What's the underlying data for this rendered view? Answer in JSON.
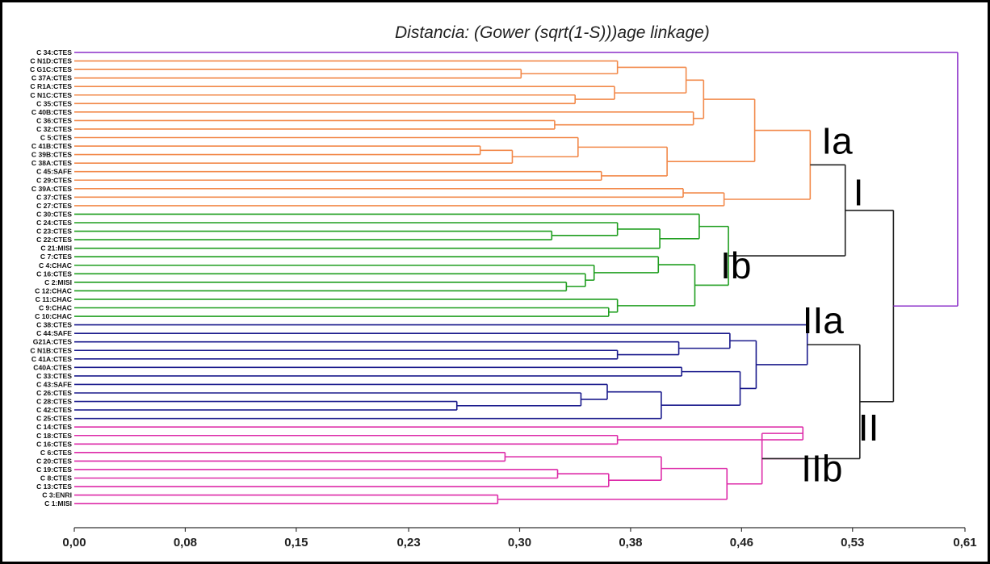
{
  "chart_data": {
    "type": "dendrogram",
    "title_prefix": "Distancia: (Gower (sqrt(1-S))",
    "title_suffix": ")age linkage)",
    "xlim": [
      0,
      0.61
    ],
    "x_ticks": [
      {
        "value": 0.0,
        "label": "0,00"
      },
      {
        "value": 0.076,
        "label": "0,08"
      },
      {
        "value": 0.152,
        "label": "0,15"
      },
      {
        "value": 0.229,
        "label": "0,23"
      },
      {
        "value": 0.305,
        "label": "0,30"
      },
      {
        "value": 0.381,
        "label": "0,38"
      },
      {
        "value": 0.457,
        "label": "0,46"
      },
      {
        "value": 0.533,
        "label": "0,53"
      },
      {
        "value": 0.61,
        "label": "0,61"
      }
    ],
    "colors": {
      "purple": "#8b2fc9",
      "orange": "#f2894a",
      "green": "#1f9e1f",
      "blue": "#1a1a8c",
      "magenta": "#dd2aa8",
      "black": "#222222"
    },
    "leaves": [
      "C 34:CTES",
      "C N1D:CTES",
      "C G1C:CTES",
      "C 37A:CTES",
      "C R1A:CTES",
      "C N1C:CTES",
      "C 35:CTES",
      "C 40B:CTES",
      "C 36:CTES",
      "C 32:CTES",
      "C 5:CTES",
      "C 41B:CTES",
      "C 39B:CTES",
      "C 38A:CTES",
      "C 45:SAFE",
      "C 29:CTES",
      "C 39A:CTES",
      "C 37:CTES",
      "C 27:CTES",
      "C 30:CTES",
      "C 24:CTES",
      "C 23:CTES",
      "C 22:CTES",
      "C 21:MISI",
      "C 7:CTES",
      "C 4:CHAC",
      "C 16:CTES",
      "C 2:MISI",
      "C 12:CHAC",
      "C 11:CHAC",
      "C 9:CHAC",
      "C 10:CHAC",
      "C 38:CTES",
      "C 44:SAFE",
      "G21A:CTES",
      "C N1B:CTES",
      "C 41A:CTES",
      "C40A:CTES",
      "C 33:CTES",
      "C 43:SAFE",
      "C 26:CTES",
      "C 28:CTES",
      "C 42:CTES",
      "C 25:CTES",
      "C 14:CTES",
      "C 18:CTES",
      "C 16:CTES",
      "C 6:CTES",
      "C 20:CTES",
      "C 19:CTES",
      "C 8:CTES",
      "C 13:CTES",
      "C 3:ENRI",
      "C 1:MISI"
    ],
    "merges": [
      {
        "id": "o1",
        "left": 2,
        "right": 3,
        "height": 0.306,
        "color": "orange"
      },
      {
        "id": "o2",
        "left": 1,
        "right": "o1",
        "height": 0.372,
        "color": "orange"
      },
      {
        "id": "o3",
        "left": 5,
        "right": 6,
        "height": 0.343,
        "color": "orange"
      },
      {
        "id": "o4",
        "left": 4,
        "right": "o3",
        "height": 0.37,
        "color": "orange"
      },
      {
        "id": "o5",
        "left": "o2",
        "right": "o4",
        "height": 0.419,
        "color": "orange"
      },
      {
        "id": "o6",
        "left": 8,
        "right": 9,
        "height": 0.329,
        "color": "orange"
      },
      {
        "id": "o7",
        "left": 7,
        "right": "o6",
        "height": 0.424,
        "color": "orange"
      },
      {
        "id": "o8",
        "left": "o5",
        "right": "o7",
        "height": 0.431,
        "color": "orange"
      },
      {
        "id": "o9",
        "left": 11,
        "right": 12,
        "height": 0.278,
        "color": "orange"
      },
      {
        "id": "o10",
        "left": "o9",
        "right": 13,
        "height": 0.3,
        "color": "orange"
      },
      {
        "id": "o11",
        "left": 10,
        "right": "o10",
        "height": 0.345,
        "color": "orange"
      },
      {
        "id": "o12",
        "left": 14,
        "right": 15,
        "height": 0.361,
        "color": "orange"
      },
      {
        "id": "o13",
        "left": "o11",
        "right": "o12",
        "height": 0.406,
        "color": "orange"
      },
      {
        "id": "o14",
        "left": "o8",
        "right": "o13",
        "height": 0.466,
        "color": "orange"
      },
      {
        "id": "o15",
        "left": 16,
        "right": 17,
        "height": 0.417,
        "color": "orange"
      },
      {
        "id": "o16",
        "left": "o15",
        "right": 18,
        "height": 0.445,
        "color": "orange"
      },
      {
        "id": "Ia",
        "left": "o14",
        "right": "o16",
        "height": 0.504,
        "color": "orange"
      },
      {
        "id": "g1",
        "left": 21,
        "right": 22,
        "height": 0.327,
        "color": "green"
      },
      {
        "id": "g2",
        "left": 20,
        "right": "g1",
        "height": 0.372,
        "color": "green"
      },
      {
        "id": "g3",
        "left": "g2",
        "right": 23,
        "height": 0.401,
        "color": "green"
      },
      {
        "id": "g4",
        "left": 19,
        "right": "g3",
        "height": 0.428,
        "color": "green"
      },
      {
        "id": "g5",
        "left": 27,
        "right": 28,
        "height": 0.337,
        "color": "green"
      },
      {
        "id": "g6",
        "left": 26,
        "right": "g5",
        "height": 0.35,
        "color": "green"
      },
      {
        "id": "g7",
        "left": 25,
        "right": "g6",
        "height": 0.356,
        "color": "green"
      },
      {
        "id": "g8",
        "left": 24,
        "right": "g7",
        "height": 0.4,
        "color": "green"
      },
      {
        "id": "g9",
        "left": 30,
        "right": 31,
        "height": 0.366,
        "color": "green"
      },
      {
        "id": "g10",
        "left": 29,
        "right": "g9",
        "height": 0.372,
        "color": "green"
      },
      {
        "id": "g11",
        "left": "g8",
        "right": "g10",
        "height": 0.425,
        "color": "green"
      },
      {
        "id": "Ib",
        "left": "g4",
        "right": "g11",
        "height": 0.448,
        "color": "green"
      },
      {
        "id": "I",
        "left": "Ia",
        "right": "Ib",
        "height": 0.528,
        "color": "black"
      },
      {
        "id": "b1",
        "left": 35,
        "right": 36,
        "height": 0.372,
        "color": "blue"
      },
      {
        "id": "b2",
        "left": 34,
        "right": "b1",
        "height": 0.414,
        "color": "blue"
      },
      {
        "id": "b3",
        "left": 33,
        "right": "b2",
        "height": 0.449,
        "color": "blue"
      },
      {
        "id": "b4",
        "left": 37,
        "right": 38,
        "height": 0.416,
        "color": "blue"
      },
      {
        "id": "b5",
        "left": 41,
        "right": 42,
        "height": 0.262,
        "color": "blue"
      },
      {
        "id": "b6",
        "left": 40,
        "right": "b5",
        "height": 0.347,
        "color": "blue"
      },
      {
        "id": "b7",
        "left": 39,
        "right": "b6",
        "height": 0.365,
        "color": "blue"
      },
      {
        "id": "b8",
        "left": "b7",
        "right": 43,
        "height": 0.402,
        "color": "blue"
      },
      {
        "id": "b9",
        "left": "b4",
        "right": "b8",
        "height": 0.456,
        "color": "blue"
      },
      {
        "id": "b10",
        "left": "b3",
        "right": "b9",
        "height": 0.467,
        "color": "blue"
      },
      {
        "id": "IIa",
        "left": 32,
        "right": "b10",
        "height": 0.502,
        "color": "blue"
      },
      {
        "id": "m1",
        "left": 45,
        "right": 46,
        "height": 0.372,
        "color": "magenta"
      },
      {
        "id": "m2",
        "left": 44,
        "right": "m1",
        "height": 0.499,
        "color": "magenta"
      },
      {
        "id": "m3",
        "left": 47,
        "right": 48,
        "height": 0.295,
        "color": "magenta"
      },
      {
        "id": "m4",
        "left": 49,
        "right": 50,
        "height": 0.331,
        "color": "magenta"
      },
      {
        "id": "m5",
        "left": "m4",
        "right": 51,
        "height": 0.366,
        "color": "magenta"
      },
      {
        "id": "m6",
        "left": "m3",
        "right": "m5",
        "height": 0.402,
        "color": "magenta"
      },
      {
        "id": "m7",
        "left": 52,
        "right": 53,
        "height": 0.29,
        "color": "magenta"
      },
      {
        "id": "m8",
        "left": "m6",
        "right": "m7",
        "height": 0.447,
        "color": "magenta"
      },
      {
        "id": "m9",
        "left": "m2",
        "right": "m8",
        "height": 0.471,
        "color": "magenta"
      },
      {
        "id": "IIb",
        "left": "m9",
        "right": "m9",
        "height": 0.499,
        "color": "magenta"
      },
      {
        "id": "II",
        "left": "IIa",
        "right": "m9",
        "height": 0.538,
        "color": "black"
      },
      {
        "id": "root34",
        "left": "I",
        "right": "II",
        "height": 0.561,
        "color": "black"
      },
      {
        "id": "root",
        "left": 0,
        "right": "root34",
        "height": 0.605,
        "color": "purple"
      }
    ],
    "group_labels": [
      {
        "node": "Ia",
        "text": "Ia"
      },
      {
        "node": "I",
        "text": "I"
      },
      {
        "node": "Ib",
        "text": "Ib"
      },
      {
        "node": "IIa",
        "text": "IIa"
      },
      {
        "node": "II",
        "text": "II"
      },
      {
        "node": "IIb",
        "text": "IIb"
      }
    ]
  }
}
